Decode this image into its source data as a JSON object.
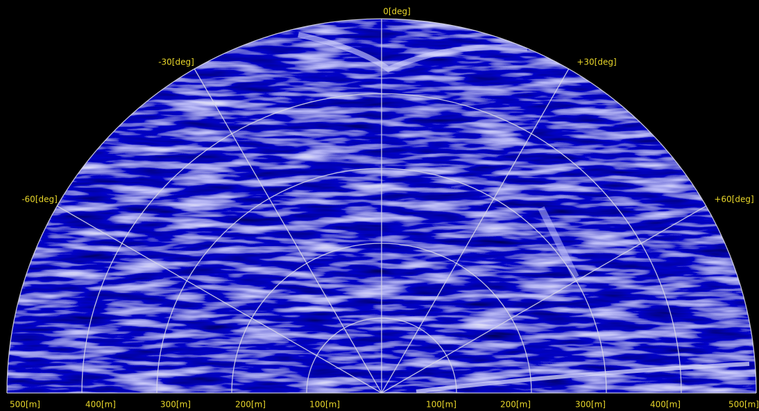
{
  "angle_labels": [
    "0[deg]",
    "-30[deg]",
    "+30[deg]",
    "-60[deg]",
    "+60[deg]"
  ],
  "range_labels": [
    "500[m]",
    "400[m]",
    "300[m]",
    "200[m]",
    "100[m]",
    "100[m]",
    "200[m]",
    "300[m]",
    "400[m]",
    "500[m]"
  ]
}
